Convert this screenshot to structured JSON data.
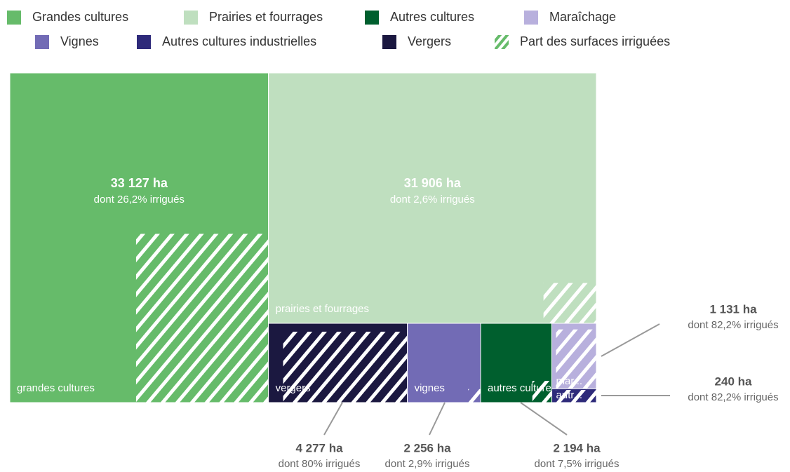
{
  "chart_data": {
    "type": "treemap",
    "hatch_legend": "Part des surfaces irriguées",
    "hatch_color": "#66bb6a",
    "series": [
      {
        "name": "Grandes cultures",
        "label": "grandes cultures",
        "color": "#66bb6a",
        "value": 33127,
        "value_label": "33 127 ha",
        "irrigated": 26.2,
        "irrigated_label": "dont 26,2% irrigués"
      },
      {
        "name": "Prairies et fourrages",
        "label": "prairies et fourrages",
        "color": "#bfdfbf",
        "value": 31906,
        "value_label": "31 906 ha",
        "irrigated": 2.6,
        "irrigated_label": "dont 2,6% irrigués"
      },
      {
        "name": "Vergers",
        "label": "vergers",
        "color": "#1b1840",
        "value": 4277,
        "value_label": "4 277 ha",
        "irrigated": 80,
        "irrigated_label": "dont 80% irrigués"
      },
      {
        "name": "Vignes",
        "label": "vignes",
        "color": "#726bb5",
        "value": 2256,
        "value_label": "2 256 ha",
        "irrigated": 2.9,
        "irrigated_label": "dont 2,9% irrigués"
      },
      {
        "name": "Autres cultures",
        "label": "autres cultures",
        "color": "#005f2e",
        "value": 2194,
        "value_label": "2 194 ha",
        "irrigated": 7.5,
        "irrigated_label": "dont 7,5% irrigués"
      },
      {
        "name": "Maraîchage",
        "label": "mar...",
        "color": "#b8b0dd",
        "value": 1131,
        "value_label": "1 131 ha",
        "irrigated": 82.2,
        "irrigated_label": "dont 82,2% irrigués"
      },
      {
        "name": "Autres cultures industrielles",
        "label": "autr...",
        "color": "#2e2a7a",
        "value": 240,
        "value_label": "240 ha",
        "irrigated": 82.2,
        "irrigated_label": "dont 82,2% irrigués"
      }
    ]
  }
}
